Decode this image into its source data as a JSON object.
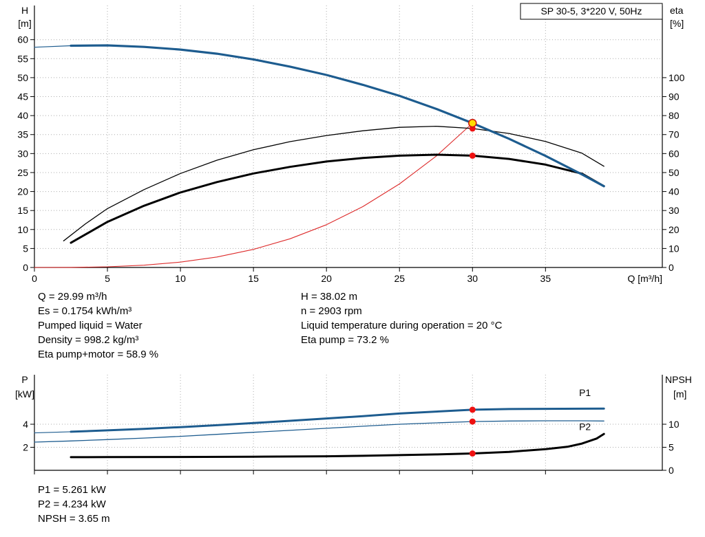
{
  "info_top": {
    "col1": [
      "Q = 29.99 m³/h",
      "Es = 0.1754 kWh/m³",
      "Pumped liquid = Water",
      "Density = 998.2 kg/m³",
      "Eta pump+motor = 58.9 %"
    ],
    "col2": [
      "H = 38.02 m",
      "n = 2903 rpm",
      "Liquid temperature during operation = 20 °C",
      "Eta pump = 73.2 %"
    ]
  },
  "info_bottom": [
    "P1 = 5.261 kW",
    "P2 = 4.234 kW",
    "NPSH = 3.65 m"
  ],
  "colors": {
    "curve_blue": "#1d5c8f",
    "curve_black": "#000000",
    "curve_red": "#dd2a2a",
    "marker_red": "#ee1111",
    "duty_fill": "#ffdd00",
    "duty_stroke": "#cc1111",
    "grid": "#ababab"
  },
  "chart_data": [
    {
      "type": "line",
      "title_box": "SP 30-5, 3*220 V, 50Hz",
      "x_axis": {
        "label": "Q [m³/h]",
        "min": 0,
        "max": 43,
        "ticks": [
          0,
          5,
          10,
          15,
          20,
          25,
          30,
          35
        ],
        "show_tick_labels": true
      },
      "y_left": {
        "title": [
          "H",
          "[m]"
        ],
        "min": 0,
        "max": 69,
        "ticks": [
          0,
          5,
          10,
          15,
          20,
          25,
          30,
          35,
          40,
          45,
          50,
          55,
          60
        ]
      },
      "y_right": {
        "title": [
          "eta",
          "[%]"
        ],
        "min": 0,
        "max": 138,
        "ticks": [
          0,
          10,
          20,
          30,
          40,
          50,
          60,
          70,
          80,
          90,
          100
        ]
      },
      "grid": true,
      "series": [
        {
          "name": "system-curve",
          "color": "#dd2a2a",
          "width": 1.1,
          "axis": "left",
          "x": [
            0,
            2.5,
            5,
            7.5,
            10,
            12.5,
            15,
            17.5,
            20,
            22.5,
            25,
            27.5,
            30
          ],
          "y": [
            0,
            0.02,
            0.18,
            0.59,
            1.41,
            2.75,
            4.76,
            7.55,
            11.27,
            16.04,
            22.01,
            29.28,
            38.02
          ]
        },
        {
          "name": "eta-pump-curve",
          "color": "#000000",
          "width": 1.3,
          "axis": "right",
          "x": [
            2,
            3.5,
            5,
            7.5,
            10,
            12.5,
            15,
            17.5,
            20,
            22.5,
            25,
            27.5,
            30,
            32.5,
            35,
            37.5,
            39
          ],
          "y": [
            14,
            23,
            31,
            41,
            49.5,
            56.5,
            62,
            66.3,
            69.5,
            72,
            73.8,
            74.4,
            73.2,
            70.6,
            66.4,
            60.2,
            53.3
          ]
        },
        {
          "name": "eta-pump-motor-curve",
          "color": "#000000",
          "width": 3,
          "axis": "right",
          "x": [
            2.5,
            5,
            7.5,
            10,
            12.5,
            15,
            17.5,
            20,
            22.5,
            25,
            27.5,
            30,
            32.5,
            35,
            37.5,
            39
          ],
          "y": [
            13,
            24,
            32.5,
            39.5,
            45,
            49.5,
            53,
            55.8,
            57.7,
            58.9,
            59.4,
            58.9,
            57.2,
            54.2,
            49.4,
            42.8
          ]
        },
        {
          "name": "head-curve",
          "color": "#1d5c8f",
          "width": 3.2,
          "axis": "left",
          "lead_thin_until": 2.5,
          "x": [
            0,
            2.5,
            5,
            7.5,
            10,
            12.5,
            15,
            17.5,
            20,
            22.5,
            25,
            27.5,
            30,
            32.5,
            35,
            37.5,
            39
          ],
          "y": [
            58.0,
            58.4,
            58.5,
            58.1,
            57.4,
            56.3,
            54.8,
            52.9,
            50.7,
            48.1,
            45.2,
            41.8,
            38.02,
            33.9,
            29.4,
            24.5,
            21.4
          ]
        }
      ],
      "markers": [
        {
          "name": "eta-pump-point",
          "x": 30,
          "y": 73.2,
          "axis": "right",
          "r": 4.5,
          "fill": "#ee1111"
        },
        {
          "name": "eta-pump-motor-point",
          "x": 30,
          "y": 58.9,
          "axis": "right",
          "r": 4.5,
          "fill": "#ee1111"
        },
        {
          "name": "duty-point",
          "x": 30,
          "y": 38.02,
          "axis": "left",
          "r": 5.5,
          "fill": "#ffdd00",
          "stroke": "#cc1111"
        }
      ]
    },
    {
      "type": "line",
      "x_axis": {
        "label": "",
        "min": 0,
        "max": 43,
        "ticks": [
          0,
          5,
          10,
          15,
          20,
          25,
          30,
          35
        ],
        "show_tick_labels": false
      },
      "y_left": {
        "title": [
          "P",
          "[kW]"
        ],
        "min": 0,
        "max": 8.3,
        "ticks": [
          2,
          4
        ]
      },
      "y_right": {
        "title": [
          "NPSH",
          "[m]"
        ],
        "min": 0,
        "max": 20.75,
        "ticks": [
          0,
          5,
          10
        ]
      },
      "grid": true,
      "series": [
        {
          "name": "p2-curve",
          "color": "#1d5c8f",
          "width": 1.3,
          "axis": "left",
          "x": [
            0,
            2.5,
            5,
            7.5,
            10,
            12.5,
            15,
            17.5,
            20,
            22.5,
            25,
            27.5,
            30,
            32.5,
            35,
            37.5,
            39
          ],
          "y": [
            2.45,
            2.55,
            2.67,
            2.8,
            2.95,
            3.12,
            3.3,
            3.47,
            3.65,
            3.83,
            4.0,
            4.12,
            4.234,
            4.28,
            4.3,
            4.3,
            4.28
          ]
        },
        {
          "name": "p1-curve",
          "color": "#1d5c8f",
          "width": 3,
          "axis": "left",
          "lead_thin_until": 2.5,
          "x": [
            0,
            2.5,
            5,
            7.5,
            10,
            12.5,
            15,
            17.5,
            20,
            22.5,
            25,
            27.5,
            30,
            32.5,
            35,
            37.5,
            39
          ],
          "y": [
            3.25,
            3.35,
            3.47,
            3.6,
            3.75,
            3.92,
            4.1,
            4.3,
            4.5,
            4.7,
            4.93,
            5.1,
            5.261,
            5.32,
            5.34,
            5.35,
            5.36
          ]
        },
        {
          "name": "npsh-curve",
          "color": "#000000",
          "width": 3,
          "axis": "right",
          "x": [
            2.5,
            5,
            10,
            15,
            20,
            22.5,
            25,
            27.5,
            30,
            32.5,
            35,
            36.5,
            37.5,
            38.5,
            39
          ],
          "y": [
            2.85,
            2.87,
            2.9,
            2.95,
            3.05,
            3.15,
            3.3,
            3.45,
            3.65,
            4.0,
            4.6,
            5.1,
            5.8,
            6.9,
            7.9
          ]
        }
      ],
      "markers": [
        {
          "name": "p1-point",
          "x": 30,
          "y": 5.261,
          "axis": "left",
          "r": 4.5,
          "fill": "#ee1111"
        },
        {
          "name": "p2-point",
          "x": 30,
          "y": 4.234,
          "axis": "left",
          "r": 4.5,
          "fill": "#ee1111"
        },
        {
          "name": "npsh-point",
          "x": 30,
          "y": 3.65,
          "axis": "right",
          "r": 4.5,
          "fill": "#ee1111"
        }
      ],
      "series_labels": [
        {
          "text": "P1",
          "x": 37.3,
          "y": 6.45,
          "axis": "left",
          "color": "#1d5c8f"
        },
        {
          "text": "P2",
          "x": 37.3,
          "y": 3.5,
          "axis": "left",
          "color": "#1d5c8f"
        }
      ]
    }
  ]
}
